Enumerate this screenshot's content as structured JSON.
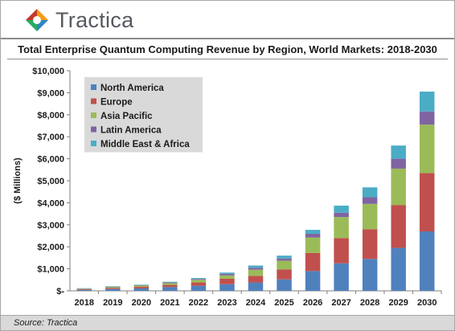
{
  "brand": {
    "name": "Tractica"
  },
  "source": "Source: Tractica",
  "chart_data": {
    "type": "bar",
    "stacked": true,
    "title": "Total Enterprise Quantum Computing Revenue by Region, World Markets: 2018-2030",
    "ylabel": "($ Millions)",
    "xlabel": "",
    "ylim": [
      0,
      10000
    ],
    "yticks": [
      0,
      1000,
      2000,
      3000,
      4000,
      5000,
      6000,
      7000,
      8000,
      9000,
      10000
    ],
    "ytick_labels": [
      "$-",
      "$1,000",
      "$2,000",
      "$3,000",
      "$4,000",
      "$5,000",
      "$6,000",
      "$7,000",
      "$8,000",
      "$9,000",
      "$10,000"
    ],
    "legend_position": "top-left",
    "grid": false,
    "categories": [
      "2018",
      "2019",
      "2020",
      "2021",
      "2022",
      "2023",
      "2024",
      "2025",
      "2026",
      "2027",
      "2028",
      "2029",
      "2030"
    ],
    "series": [
      {
        "name": "North America",
        "color": "#4f81bd",
        "values": [
          50,
          80,
          110,
          170,
          230,
          300,
          380,
          520,
          900,
          1250,
          1450,
          1950,
          2700
        ]
      },
      {
        "name": "Europe",
        "color": "#c0504d",
        "values": [
          30,
          50,
          70,
          100,
          150,
          250,
          300,
          450,
          820,
          1150,
          1350,
          1950,
          2650
        ]
      },
      {
        "name": "Asia Pacific",
        "color": "#9bbb59",
        "values": [
          20,
          40,
          60,
          80,
          120,
          150,
          280,
          400,
          700,
          950,
          1150,
          1650,
          2200
        ]
      },
      {
        "name": "Latin America",
        "color": "#8064a2",
        "values": [
          10,
          20,
          20,
          30,
          40,
          70,
          90,
          100,
          170,
          200,
          300,
          450,
          600
        ]
      },
      {
        "name": "Middle East & Africa",
        "color": "#4bacc6",
        "values": [
          10,
          20,
          20,
          30,
          40,
          60,
          100,
          130,
          180,
          320,
          450,
          600,
          900
        ]
      }
    ]
  }
}
